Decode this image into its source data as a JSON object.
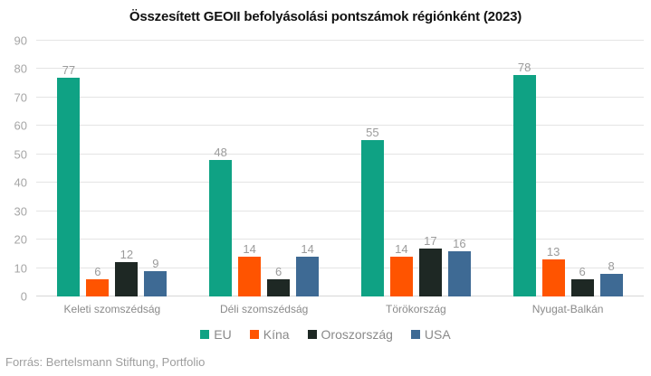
{
  "chart": {
    "title": "Összesített GEOII befolyásolási pontszámok régiónként (2023)"
  },
  "chart_data": {
    "type": "bar",
    "title": "Összesített GEOII befolyásolási pontszámok régiónként (2023)",
    "categories": [
      "Keleti szomszédság",
      "Déli szomszédság",
      "Törökország",
      "Nyugat-Balkán"
    ],
    "series": [
      {
        "name": "EU",
        "color": "#0fa284",
        "values": [
          77,
          48,
          55,
          78
        ]
      },
      {
        "name": "Kína",
        "color": "#ff5400",
        "values": [
          6,
          14,
          14,
          13
        ]
      },
      {
        "name": "Oroszország",
        "color": "#1e2824",
        "values": [
          12,
          6,
          17,
          6
        ]
      },
      {
        "name": "USA",
        "color": "#3e6a94",
        "values": [
          9,
          14,
          16,
          8
        ]
      }
    ],
    "xlabel": "",
    "ylabel": "",
    "ylim": [
      0,
      90
    ],
    "yticks": [
      0,
      10,
      20,
      30,
      40,
      50,
      60,
      70,
      80,
      90
    ],
    "grid": true,
    "legend_position": "bottom"
  },
  "footer": {
    "source": "Forrás: Bertelsmann Stiftung, Portfolio"
  }
}
